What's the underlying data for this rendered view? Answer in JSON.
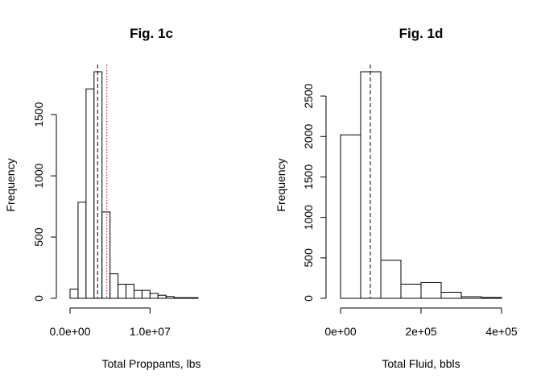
{
  "chart_data": [
    {
      "type": "bar",
      "title": "Fig. 1c",
      "xlabel": "Total Proppants, lbs",
      "ylabel": "Frequency",
      "bin_edges": [
        0,
        1000000,
        2000000,
        3000000,
        4000000,
        5000000,
        6000000,
        7000000,
        8000000,
        9000000,
        10000000,
        11000000,
        12000000,
        13000000,
        14000000,
        15000000,
        16000000
      ],
      "values": [
        75,
        785,
        1710,
        1850,
        705,
        200,
        115,
        115,
        65,
        65,
        40,
        25,
        15,
        5,
        5,
        5
      ],
      "xlim": [
        0,
        16000000
      ],
      "ylim": [
        0,
        1850
      ],
      "x_ticks": [
        0,
        10000000
      ],
      "x_tick_labels": [
        "0.0e+00",
        "1.0e+07"
      ],
      "y_ticks": [
        0,
        500,
        1000,
        1500
      ],
      "y_tick_labels": [
        "0",
        "500",
        "1000",
        "1500"
      ],
      "reference_lines": [
        {
          "x": 3450000,
          "style": "dashed",
          "color": "#000000"
        },
        {
          "x": 4600000,
          "style": "dotted",
          "color": "#cc0000"
        }
      ],
      "grid": false
    },
    {
      "type": "bar",
      "title": "Fig. 1d",
      "xlabel": "Total Fluid, bbls",
      "ylabel": "Frequency",
      "bin_edges": [
        0,
        50000,
        100000,
        150000,
        200000,
        250000,
        300000,
        350000,
        400000
      ],
      "values": [
        2020,
        2800,
        470,
        175,
        195,
        75,
        20,
        10
      ],
      "xlim": [
        0,
        400000
      ],
      "ylim": [
        0,
        2800
      ],
      "x_ticks": [
        0,
        200000,
        400000
      ],
      "x_tick_labels": [
        "0e+00",
        "2e+05",
        "4e+05"
      ],
      "y_ticks": [
        0,
        500,
        1000,
        1500,
        2000,
        2500
      ],
      "y_tick_labels": [
        "0",
        "500",
        "1000",
        "1500",
        "2000",
        "2500"
      ],
      "reference_lines": [
        {
          "x": 74000,
          "style": "dashed",
          "color": "#000000"
        }
      ],
      "grid": false
    }
  ]
}
